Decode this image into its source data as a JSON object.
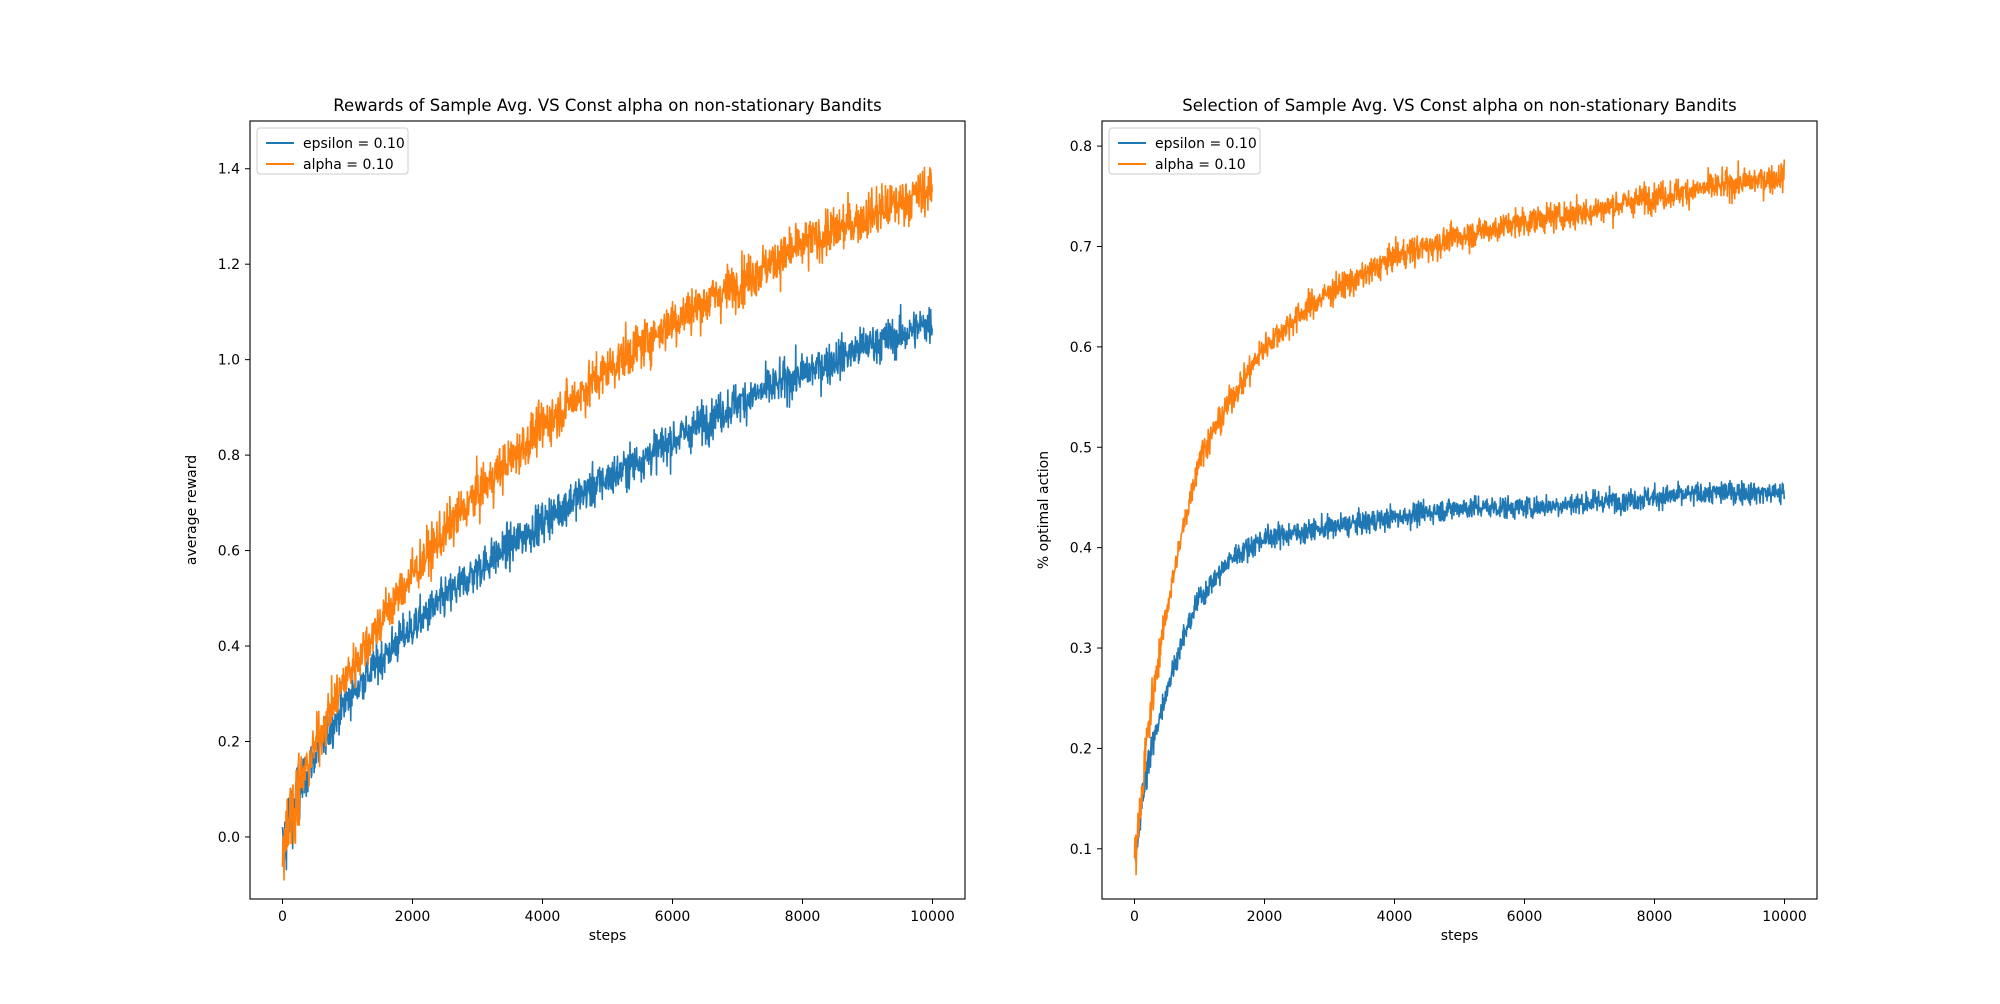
{
  "colors": {
    "series_1": "#1f77b4",
    "series_2": "#ff7f0e",
    "axes": "#000000",
    "legend_border": "#cccccc"
  },
  "chart_data": [
    {
      "type": "line",
      "title": "Rewards of Sample Avg. VS Const alpha on non-stationary Bandits",
      "xlabel": "steps",
      "ylabel": "average reward",
      "xlim": [
        -500,
        10500
      ],
      "ylim": [
        -0.13,
        1.5
      ],
      "xticks": [
        0,
        2000,
        4000,
        6000,
        8000,
        10000
      ],
      "xtick_labels": [
        "0",
        "2000",
        "4000",
        "6000",
        "8000",
        "10000"
      ],
      "yticks": [
        0.0,
        0.2,
        0.4,
        0.6,
        0.8,
        1.0,
        1.2,
        1.4
      ],
      "ytick_labels": [
        "0.0",
        "0.2",
        "0.4",
        "0.6",
        "0.8",
        "1.0",
        "1.2",
        "1.4"
      ],
      "legend_position": "top-left",
      "grid": false,
      "series": [
        {
          "name": "epsilon = 0.10",
          "color": "#1f77b4",
          "noise": 0.03,
          "x": [
            0,
            100,
            250,
            500,
            750,
            1000,
            1500,
            2000,
            2500,
            3000,
            3500,
            4000,
            4500,
            5000,
            5500,
            6000,
            6500,
            7000,
            7500,
            8000,
            8500,
            9000,
            9500,
            10000
          ],
          "values": [
            -0.03,
            0.03,
            0.09,
            0.17,
            0.23,
            0.29,
            0.37,
            0.44,
            0.5,
            0.56,
            0.61,
            0.66,
            0.71,
            0.75,
            0.79,
            0.83,
            0.87,
            0.91,
            0.94,
            0.97,
            1.0,
            1.03,
            1.05,
            1.08
          ]
        },
        {
          "name": "alpha = 0.10",
          "color": "#ff7f0e",
          "noise": 0.035,
          "x": [
            0,
            100,
            250,
            500,
            750,
            1000,
            1500,
            2000,
            2500,
            3000,
            3500,
            4000,
            4500,
            5000,
            5500,
            6000,
            6500,
            7000,
            7500,
            8000,
            8500,
            9000,
            9500,
            10000
          ],
          "values": [
            -0.02,
            0.04,
            0.1,
            0.19,
            0.27,
            0.34,
            0.45,
            0.55,
            0.64,
            0.72,
            0.79,
            0.86,
            0.92,
            0.98,
            1.03,
            1.08,
            1.12,
            1.16,
            1.2,
            1.24,
            1.27,
            1.3,
            1.33,
            1.36
          ]
        }
      ]
    },
    {
      "type": "line",
      "title": "Selection of Sample Avg. VS Const alpha on non-stationary Bandits",
      "xlabel": "steps",
      "ylabel": "% optimal action",
      "xlim": [
        -500,
        10500
      ],
      "ylim": [
        0.05,
        0.825
      ],
      "xticks": [
        0,
        2000,
        4000,
        6000,
        8000,
        10000
      ],
      "xtick_labels": [
        "0",
        "2000",
        "4000",
        "6000",
        "8000",
        "10000"
      ],
      "yticks": [
        0.1,
        0.2,
        0.3,
        0.4,
        0.5,
        0.6,
        0.7,
        0.8
      ],
      "ytick_labels": [
        "0.1",
        "0.2",
        "0.3",
        "0.4",
        "0.5",
        "0.6",
        "0.7",
        "0.8"
      ],
      "legend_position": "top-left",
      "grid": false,
      "series": [
        {
          "name": "epsilon = 0.10",
          "color": "#1f77b4",
          "noise": 0.008,
          "x": [
            0,
            100,
            200,
            300,
            500,
            750,
            1000,
            1500,
            2000,
            2500,
            3000,
            4000,
            5000,
            6000,
            7000,
            8000,
            9000,
            10000
          ],
          "values": [
            0.09,
            0.14,
            0.18,
            0.21,
            0.26,
            0.31,
            0.35,
            0.39,
            0.41,
            0.415,
            0.42,
            0.43,
            0.44,
            0.44,
            0.445,
            0.45,
            0.455,
            0.455
          ]
        },
        {
          "name": "alpha = 0.10",
          "color": "#ff7f0e",
          "noise": 0.01,
          "x": [
            0,
            100,
            200,
            300,
            500,
            750,
            1000,
            1500,
            2000,
            2500,
            3000,
            3500,
            4000,
            5000,
            6000,
            7000,
            8000,
            9000,
            10000
          ],
          "values": [
            0.09,
            0.15,
            0.21,
            0.26,
            0.34,
            0.42,
            0.49,
            0.55,
            0.6,
            0.63,
            0.655,
            0.67,
            0.69,
            0.71,
            0.725,
            0.735,
            0.75,
            0.76,
            0.77
          ]
        }
      ]
    }
  ]
}
